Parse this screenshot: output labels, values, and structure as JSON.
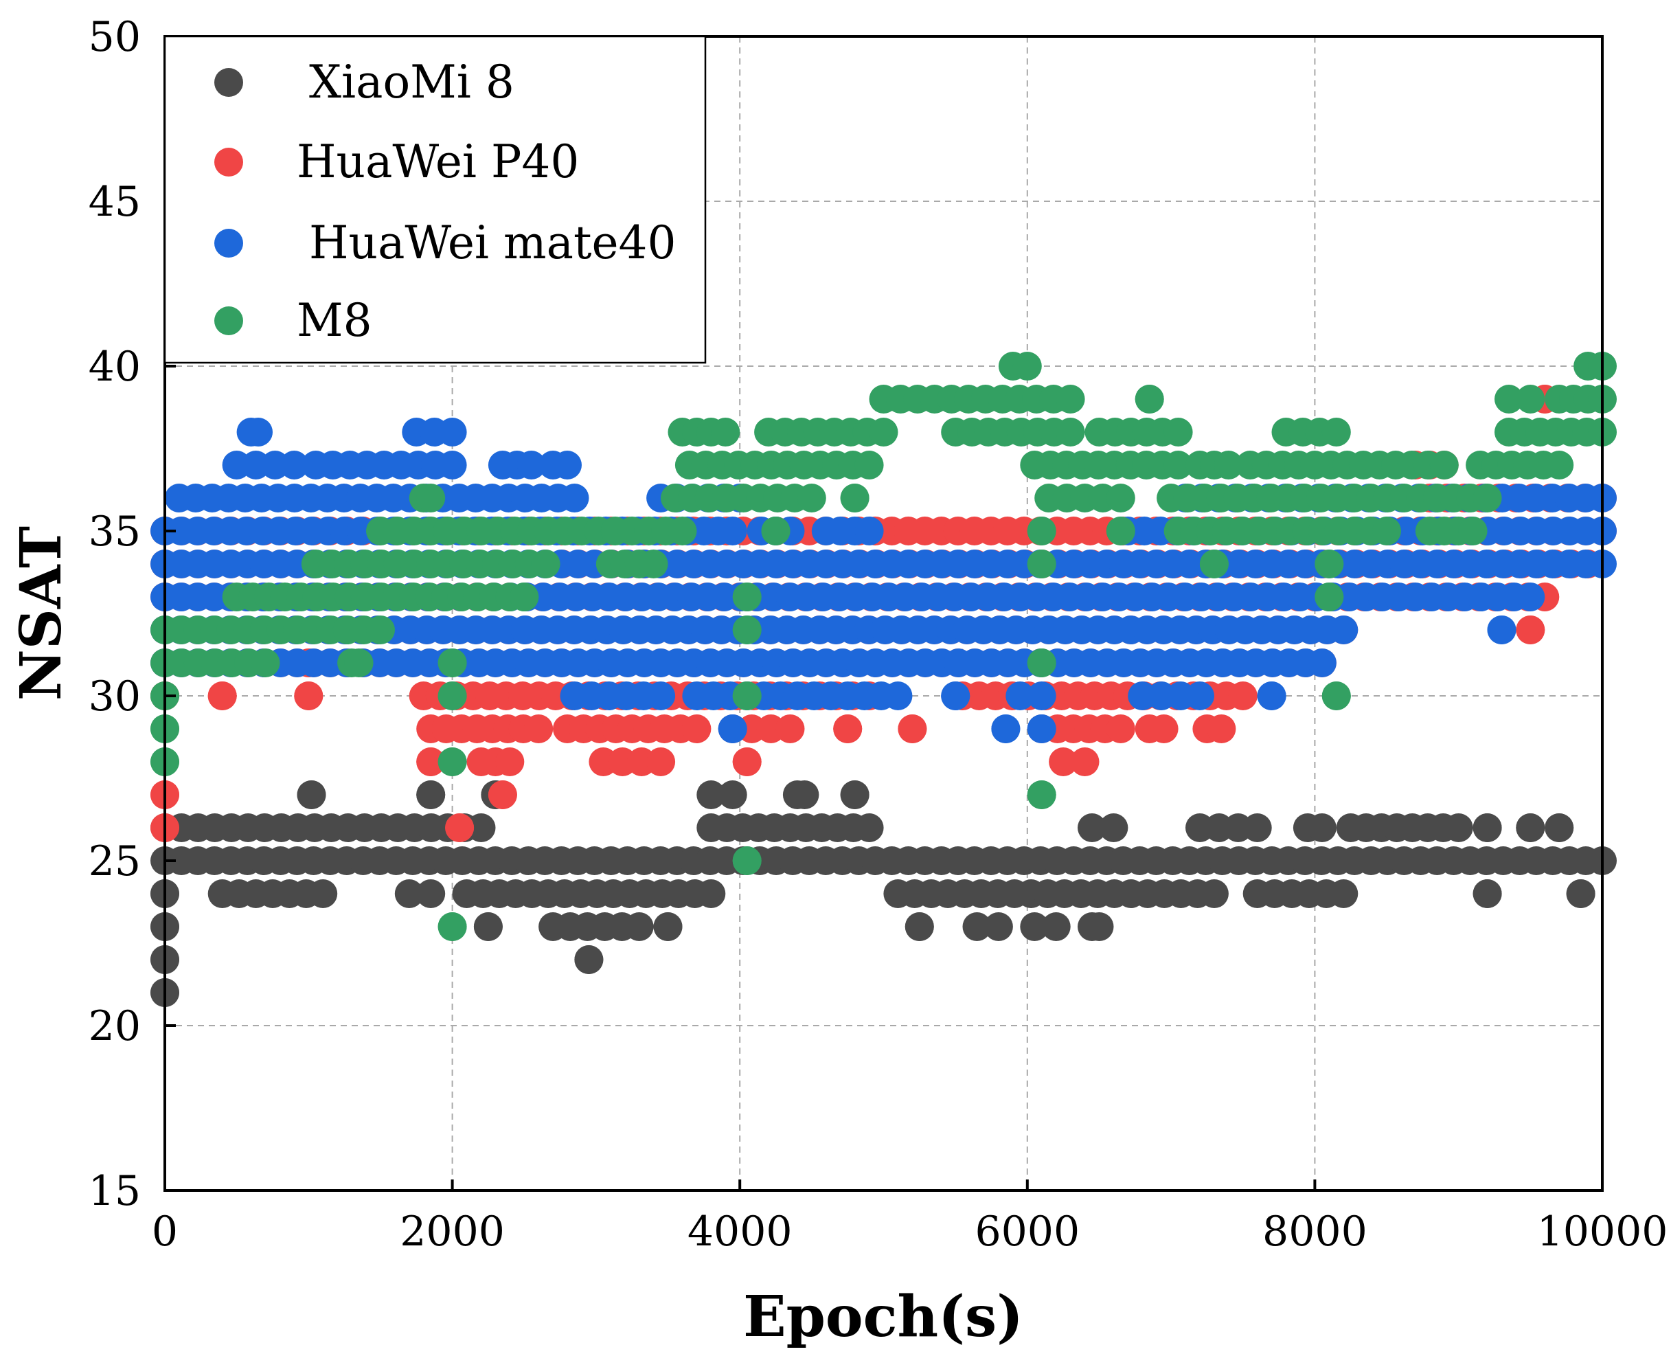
{
  "chart_data": {
    "type": "scatter",
    "title": "",
    "xlabel": "Epoch(s)",
    "ylabel": "NSAT",
    "xlim": [
      0,
      10000
    ],
    "ylim": [
      15,
      50
    ],
    "xticks": [
      0,
      2000,
      4000,
      6000,
      8000,
      10000
    ],
    "yticks": [
      15,
      20,
      25,
      30,
      35,
      40,
      45,
      50
    ],
    "grid": true,
    "legend_position": "top-left",
    "series": [
      {
        "name": "XiaoMi 8",
        "color": "#4a4a4a",
        "runs": [
          [
            25,
            0,
            10000
          ],
          [
            26,
            0,
            2200
          ],
          [
            26,
            3800,
            4900
          ],
          [
            26,
            6450,
            6600
          ],
          [
            26,
            7200,
            7600
          ],
          [
            26,
            7950,
            8050
          ],
          [
            26,
            8250,
            9000
          ],
          [
            26,
            9200,
            9200
          ],
          [
            26,
            9500,
            9500
          ],
          [
            26,
            9700,
            9700
          ],
          [
            24,
            0,
            0
          ],
          [
            24,
            400,
            1100
          ],
          [
            24,
            1700,
            1850
          ],
          [
            24,
            2100,
            3800
          ],
          [
            24,
            5100,
            7300
          ],
          [
            24,
            7600,
            8200
          ],
          [
            24,
            9200,
            9200
          ],
          [
            24,
            9850,
            9850
          ],
          [
            23,
            0,
            0
          ],
          [
            23,
            2250,
            2250
          ],
          [
            23,
            2700,
            3300
          ],
          [
            23,
            3500,
            3500
          ],
          [
            23,
            5250,
            5250
          ],
          [
            23,
            5650,
            5800
          ],
          [
            23,
            6050,
            6200
          ],
          [
            23,
            6450,
            6500
          ],
          [
            22,
            0,
            0
          ],
          [
            22,
            2950,
            2950
          ],
          [
            21,
            0,
            0
          ],
          [
            27,
            1020,
            1020
          ],
          [
            27,
            1850,
            1850
          ],
          [
            27,
            2300,
            2300
          ],
          [
            27,
            3800,
            3950
          ],
          [
            27,
            4400,
            4450
          ],
          [
            27,
            4800,
            4800
          ]
        ],
        "points": []
      },
      {
        "name": "HuaWei P40",
        "color": "#f04545",
        "runs": [
          [
            34,
            0,
            9900
          ],
          [
            35,
            0,
            10000
          ],
          [
            33,
            0,
            9600
          ],
          [
            32,
            0,
            8200
          ],
          [
            31,
            0,
            8050
          ],
          [
            30,
            1800,
            4900
          ],
          [
            30,
            5550,
            7500
          ],
          [
            29,
            1850,
            2600
          ],
          [
            29,
            2800,
            3700
          ],
          [
            29,
            3950,
            4350
          ],
          [
            29,
            6100,
            6650
          ],
          [
            29,
            6850,
            6950
          ],
          [
            29,
            7250,
            7350
          ],
          [
            28,
            1850,
            1850
          ],
          [
            28,
            2200,
            2400
          ],
          [
            28,
            3050,
            3450
          ],
          [
            28,
            4050,
            4050
          ],
          [
            28,
            6250,
            6400
          ],
          [
            37,
            8700,
            8900
          ],
          [
            39,
            9600,
            9600
          ],
          [
            36,
            8800,
            10000
          ],
          [
            31,
            1000,
            1000
          ],
          [
            30,
            400,
            400
          ],
          [
            30,
            1000,
            1000
          ],
          [
            30,
            0,
            0
          ],
          [
            29,
            4750,
            4750
          ],
          [
            29,
            5200,
            5200
          ],
          [
            27,
            0,
            0
          ],
          [
            27,
            2350,
            2350
          ],
          [
            26,
            0,
            0
          ],
          [
            26,
            2050,
            2050
          ],
          [
            32,
            9500,
            9500
          ]
        ],
        "points": []
      },
      {
        "name": "HuaWei mate40",
        "color": "#1e68da",
        "runs": [
          [
            35,
            0,
            3750
          ],
          [
            34,
            0,
            10000
          ],
          [
            33,
            0,
            9500
          ],
          [
            32,
            0,
            8200
          ],
          [
            31,
            0,
            8050
          ],
          [
            36,
            100,
            2850
          ],
          [
            36,
            3450,
            4000
          ],
          [
            36,
            7100,
            10000
          ],
          [
            35,
            4600,
            4900
          ],
          [
            35,
            6700,
            10000
          ],
          [
            37,
            500,
            900
          ],
          [
            37,
            1050,
            2000
          ],
          [
            37,
            2350,
            2550
          ],
          [
            37,
            2700,
            2800
          ],
          [
            38,
            600,
            650
          ],
          [
            38,
            1750,
            2000
          ],
          [
            30,
            2850,
            3450
          ],
          [
            30,
            3700,
            5100
          ],
          [
            30,
            5950,
            6100
          ],
          [
            30,
            6800,
            7200
          ],
          [
            30,
            7700,
            7700
          ],
          [
            30,
            5500,
            5500
          ],
          [
            29,
            3950,
            3950
          ],
          [
            29,
            5850,
            5850
          ],
          [
            29,
            6100,
            6100
          ],
          [
            32,
            9300,
            9300
          ],
          [
            35,
            4150,
            4350
          ],
          [
            35,
            3850,
            3950
          ]
        ],
        "points": []
      },
      {
        "name": "M8",
        "color": "#33a062",
        "runs": [
          [
            35,
            1500,
            3600
          ],
          [
            34,
            1050,
            2650
          ],
          [
            34,
            3100,
            3400
          ],
          [
            33,
            500,
            2400
          ],
          [
            33,
            2500,
            2500
          ],
          [
            32,
            0,
            1500
          ],
          [
            31,
            0,
            700
          ],
          [
            31,
            1300,
            1350
          ],
          [
            37,
            3650,
            4900
          ],
          [
            37,
            6050,
            7050
          ],
          [
            37,
            7200,
            7400
          ],
          [
            37,
            7550,
            8900
          ],
          [
            37,
            9150,
            9700
          ],
          [
            38,
            3600,
            3900
          ],
          [
            38,
            4200,
            5000
          ],
          [
            38,
            5500,
            6300
          ],
          [
            38,
            6500,
            7050
          ],
          [
            38,
            7800,
            8150
          ],
          [
            38,
            9350,
            10000
          ],
          [
            39,
            5000,
            6300
          ],
          [
            39,
            6850,
            6850
          ],
          [
            39,
            9350,
            9500
          ],
          [
            39,
            9700,
            10000
          ],
          [
            40,
            5900,
            6000
          ],
          [
            40,
            9900,
            10000
          ],
          [
            36,
            1800,
            1850
          ],
          [
            36,
            3550,
            4500
          ],
          [
            36,
            4800,
            4800
          ],
          [
            36,
            6150,
            6650
          ],
          [
            36,
            7000,
            9200
          ],
          [
            35,
            7050,
            8500
          ],
          [
            35,
            8800,
            9100
          ],
          [
            35,
            4250,
            4250
          ],
          [
            35,
            6100,
            6100
          ],
          [
            35,
            6650,
            6650
          ],
          [
            34,
            6100,
            6100
          ],
          [
            34,
            7300,
            7300
          ],
          [
            34,
            8100,
            8100
          ],
          [
            33,
            8100,
            8100
          ],
          [
            33,
            4050,
            4050
          ],
          [
            32,
            4050,
            4050
          ],
          [
            31,
            2000,
            2000
          ],
          [
            31,
            6100,
            6100
          ],
          [
            30,
            0,
            0
          ],
          [
            30,
            2000,
            2000
          ],
          [
            30,
            4050,
            4050
          ],
          [
            30,
            8150,
            8150
          ],
          [
            29,
            0,
            0
          ],
          [
            28,
            0,
            0
          ],
          [
            28,
            2000,
            2000
          ],
          [
            27,
            6100,
            6100
          ],
          [
            25,
            4050,
            4050
          ],
          [
            23,
            2000,
            2000
          ]
        ],
        "points": []
      }
    ]
  }
}
